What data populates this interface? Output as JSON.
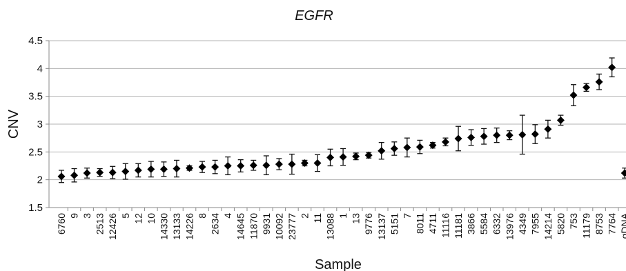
{
  "chart_data": {
    "type": "scatter",
    "title": "EGFR",
    "xlabel": "Sample",
    "ylabel": "CNV",
    "ylim": [
      1.5,
      4.5
    ],
    "yticks": [
      "1.5",
      "2",
      "2.5",
      "3",
      "3.5",
      "4",
      "4.5"
    ],
    "grid": true,
    "legend": "none",
    "marker_color": "#000000",
    "categories": [
      "6760",
      "9",
      "3",
      "2513",
      "12426",
      "5",
      "12",
      "10",
      "14330",
      "13133",
      "14226",
      "8",
      "2634",
      "4",
      "14645",
      "11870",
      "9931",
      "10092",
      "23777",
      "2",
      "11",
      "13088",
      "1",
      "13",
      "9776",
      "13137",
      "5151",
      "7",
      "8011",
      "4711",
      "11116",
      "11181",
      "3866",
      "5584",
      "6332",
      "13976",
      "4349",
      "7955",
      "14214",
      "5820",
      "753",
      "11179",
      "8753",
      "7764",
      "gDNA"
    ],
    "values": [
      2.06,
      2.08,
      2.12,
      2.13,
      2.13,
      2.15,
      2.17,
      2.19,
      2.19,
      2.2,
      2.21,
      2.23,
      2.23,
      2.25,
      2.25,
      2.26,
      2.26,
      2.28,
      2.28,
      2.3,
      2.3,
      2.4,
      2.41,
      2.42,
      2.44,
      2.52,
      2.56,
      2.58,
      2.59,
      2.62,
      2.68,
      2.74,
      2.76,
      2.78,
      2.8,
      2.8,
      2.81,
      2.82,
      2.91,
      3.07,
      3.52,
      3.66,
      3.76,
      4.02,
      2.12
    ],
    "errors": [
      0.11,
      0.12,
      0.09,
      0.07,
      0.11,
      0.14,
      0.12,
      0.14,
      0.13,
      0.15,
      0.04,
      0.1,
      0.12,
      0.16,
      0.11,
      0.09,
      0.17,
      0.1,
      0.18,
      0.05,
      0.15,
      0.15,
      0.15,
      0.06,
      0.05,
      0.15,
      0.12,
      0.17,
      0.12,
      0.05,
      0.07,
      0.22,
      0.14,
      0.14,
      0.13,
      0.08,
      0.35,
      0.17,
      0.16,
      0.09,
      0.19,
      0.07,
      0.14,
      0.17,
      0.09
    ]
  }
}
